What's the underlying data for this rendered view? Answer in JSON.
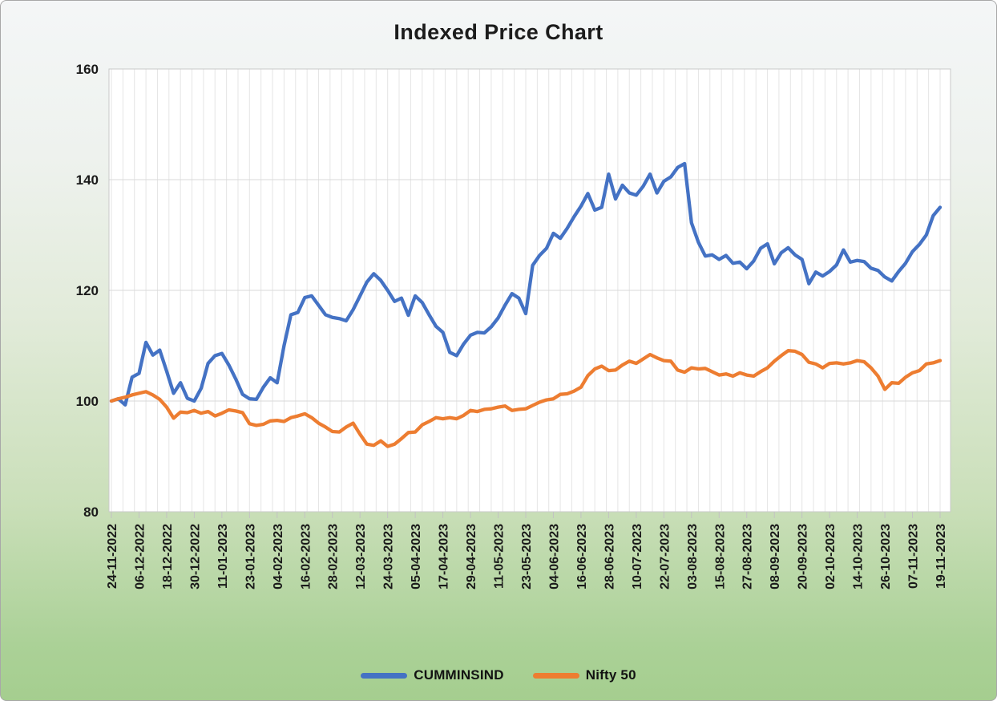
{
  "page_title": "Indexed Price Chart",
  "chart_data": {
    "type": "line",
    "title": "Indexed Price Chart",
    "xlabel": "",
    "ylabel": "",
    "ylim": [
      80,
      160
    ],
    "y_ticks": [
      80,
      100,
      120,
      140,
      160
    ],
    "grid": {
      "horizontal": true,
      "vertical": true,
      "vertical_every_days": 5
    },
    "legend_position": "bottom",
    "x_start_date": "24-11-2022",
    "x_label_interval_days": 12,
    "sample_interval_days": 3,
    "x_tick_labels": [
      "24-11-2022",
      "06-12-2022",
      "18-12-2022",
      "30-12-2022",
      "11-01-2023",
      "23-01-2023",
      "04-02-2023",
      "16-02-2023",
      "28-02-2023",
      "12-03-2023",
      "24-03-2023",
      "05-04-2023",
      "17-04-2023",
      "29-04-2023",
      "11-05-2023",
      "23-05-2023",
      "04-06-2023",
      "16-06-2023",
      "28-06-2023",
      "10-07-2023",
      "22-07-2023",
      "03-08-2023",
      "15-08-2023",
      "27-08-2023",
      "08-09-2023",
      "20-09-2023",
      "02-10-2023",
      "14-10-2023",
      "26-10-2023",
      "07-11-2023",
      "19-11-2023"
    ],
    "series": [
      {
        "name": "CUMMINSIND",
        "color": "#4472C4",
        "values": [
          100.0,
          100.4,
          99.3,
          104.3,
          105.0,
          110.6,
          108.3,
          109.2,
          105.4,
          101.4,
          103.3,
          100.5,
          100.0,
          102.3,
          106.8,
          108.2,
          108.6,
          106.5,
          104.0,
          101.2,
          100.4,
          100.3,
          102.5,
          104.2,
          103.3,
          110.0,
          115.6,
          116.0,
          118.7,
          119.0,
          117.3,
          115.6,
          115.1,
          114.9,
          114.5,
          116.5,
          119.0,
          121.5,
          123.0,
          121.8,
          120.0,
          118.0,
          118.6,
          115.5,
          119.0,
          117.8,
          115.6,
          113.5,
          112.4,
          108.8,
          108.2,
          110.3,
          111.9,
          112.4,
          112.3,
          113.4,
          115.0,
          117.3,
          119.4,
          118.6,
          115.8,
          124.5,
          126.3,
          127.6,
          130.3,
          129.4,
          131.2,
          133.3,
          135.2,
          137.5,
          134.5,
          135.0,
          141.0,
          136.5,
          139.0,
          137.6,
          137.2,
          138.8,
          141.0,
          137.6,
          139.7,
          140.5,
          142.2,
          142.9,
          132.2,
          128.7,
          126.2,
          126.4,
          125.6,
          126.3,
          124.9,
          125.1,
          123.9,
          125.3,
          127.6,
          128.4,
          124.8,
          126.8,
          127.7,
          126.4,
          125.6,
          121.2,
          123.3,
          122.6,
          123.4,
          124.6,
          127.3,
          125.1,
          125.4,
          125.2,
          124.0,
          123.6,
          122.4,
          121.7,
          123.4,
          124.9,
          127.0,
          128.3,
          130.0,
          133.5,
          135.0
        ]
      },
      {
        "name": "Nifty 50",
        "color": "#ED7D31",
        "values": [
          100.0,
          100.4,
          100.7,
          101.1,
          101.4,
          101.7,
          101.1,
          100.3,
          98.9,
          96.9,
          98.0,
          97.9,
          98.3,
          97.8,
          98.1,
          97.3,
          97.8,
          98.4,
          98.2,
          97.9,
          95.9,
          95.6,
          95.8,
          96.4,
          96.5,
          96.3,
          97.0,
          97.3,
          97.7,
          97.0,
          96.0,
          95.3,
          94.5,
          94.4,
          95.3,
          96.0,
          94.0,
          92.2,
          92.0,
          92.8,
          91.8,
          92.2,
          93.2,
          94.3,
          94.4,
          95.7,
          96.3,
          97.0,
          96.8,
          97.0,
          96.8,
          97.4,
          98.3,
          98.1,
          98.5,
          98.6,
          98.9,
          99.1,
          98.3,
          98.5,
          98.6,
          99.2,
          99.8,
          100.2,
          100.4,
          101.2,
          101.3,
          101.8,
          102.5,
          104.6,
          105.8,
          106.3,
          105.5,
          105.6,
          106.5,
          107.2,
          106.8,
          107.6,
          108.4,
          107.8,
          107.3,
          107.2,
          105.6,
          105.2,
          106.0,
          105.8,
          105.9,
          105.3,
          104.7,
          104.9,
          104.5,
          105.1,
          104.7,
          104.5,
          105.3,
          106.0,
          107.2,
          108.2,
          109.1,
          109.0,
          108.4,
          107.0,
          106.7,
          106.0,
          106.8,
          106.9,
          106.7,
          106.9,
          107.3,
          107.1,
          106.0,
          104.5,
          102.1,
          103.3,
          103.2,
          104.3,
          105.1,
          105.5,
          106.7,
          106.9,
          107.3
        ]
      }
    ],
    "colors": {
      "plot_background": "#ffffff",
      "grid_vertical": "#e5e5e5",
      "grid_horizontal": "#d9d9d9",
      "plot_border": "#c9c9c9",
      "tick": "#c2c2c2",
      "axis_text": "#1a1a1a"
    }
  },
  "legend": [
    {
      "label": "CUMMINSIND",
      "color": "#4472C4"
    },
    {
      "label": "Nifty 50",
      "color": "#ED7D31"
    }
  ]
}
